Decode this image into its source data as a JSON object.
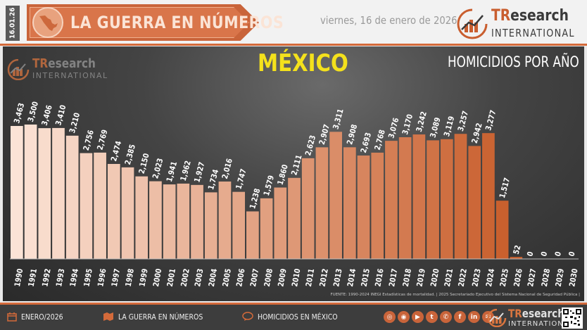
{
  "header": {
    "date_tag": "16.01.26",
    "banner_title": "LA GUERRA EN NÚMEROS",
    "date_text": "viernes, 16 de enero de 2026",
    "logo_tr": "TR",
    "logo_research": "esearch",
    "logo_intl": "INTERNATIONAL"
  },
  "panel": {
    "logo_tr": "TR",
    "logo_research": "esearch",
    "logo_intl": "INTERNATIONAL",
    "country": "MÉXICO",
    "subtitle": "HOMICIDIOS POR AÑO",
    "source": "FUENTE: 1990-2024 INEGI Estadísticas de mortalidad. | 2025 Secretariado Ejecutivo del Sistema Nacional de Seguridad Pública |"
  },
  "chart_data": {
    "type": "bar",
    "title": "MÉXICO",
    "subtitle": "HOMICIDIOS POR AÑO",
    "categories": [
      "1990",
      "1991",
      "1992",
      "1993",
      "1994",
      "1995",
      "1996",
      "1997",
      "1998",
      "1999",
      "2000",
      "2001",
      "2002",
      "2003",
      "2004",
      "2005",
      "2006",
      "2007",
      "2008",
      "2009",
      "2010",
      "2011",
      "2012",
      "2013",
      "2014",
      "2015",
      "2016",
      "2017",
      "2018",
      "2019",
      "2020",
      "2021",
      "2022",
      "2023",
      "2024",
      "2025",
      "2026",
      "2027",
      "2028",
      "2029",
      "2030"
    ],
    "values": [
      3463,
      3500,
      3406,
      3410,
      3210,
      2756,
      2769,
      2474,
      2385,
      2150,
      2023,
      1941,
      1962,
      1927,
      1734,
      2016,
      1747,
      1238,
      1579,
      1860,
      2111,
      2623,
      2907,
      3311,
      2908,
      2693,
      2768,
      3076,
      3170,
      3242,
      3089,
      3119,
      3257,
      2942,
      3277,
      1517,
      52,
      0,
      0,
      0,
      0
    ],
    "value_labels": [
      "3,463",
      "3,500",
      "3,406",
      "3,410",
      "3,210",
      "2,756",
      "2,769",
      "2,474",
      "2,385",
      "2,150",
      "2,023",
      "1,941",
      "1,962",
      "1,927",
      "1,734",
      "2,016",
      "1,747",
      "1,238",
      "1,579",
      "1,860",
      "2,111",
      "2,623",
      "2,907",
      "3,311",
      "2,908",
      "2,693",
      "2,768",
      "3,076",
      "3,170",
      "3,242",
      "3,089",
      "3,119",
      "3,257",
      "2,942",
      "3,277",
      "1,517",
      "52",
      "0",
      "0",
      "0",
      "0"
    ],
    "ylim": [
      0,
      3500
    ],
    "grid": false,
    "legend": "none",
    "colors": {
      "light": "#fbe3d6",
      "dark": "#c9602e"
    }
  },
  "footer": {
    "month": "ENERO/2026",
    "section": "LA GUERRA EN NÚMEROS",
    "topic": "HOMICIDIOS EN MÉXICO",
    "social_icons": [
      "web-icon",
      "instagram-icon",
      "youtube-icon",
      "twitter-icon",
      "whatsapp-icon",
      "facebook-icon",
      "linkedin-icon",
      "email-icon"
    ],
    "logo_tr": "TR",
    "logo_research": "esearch",
    "logo_intl": "INTERNATIONAL"
  }
}
